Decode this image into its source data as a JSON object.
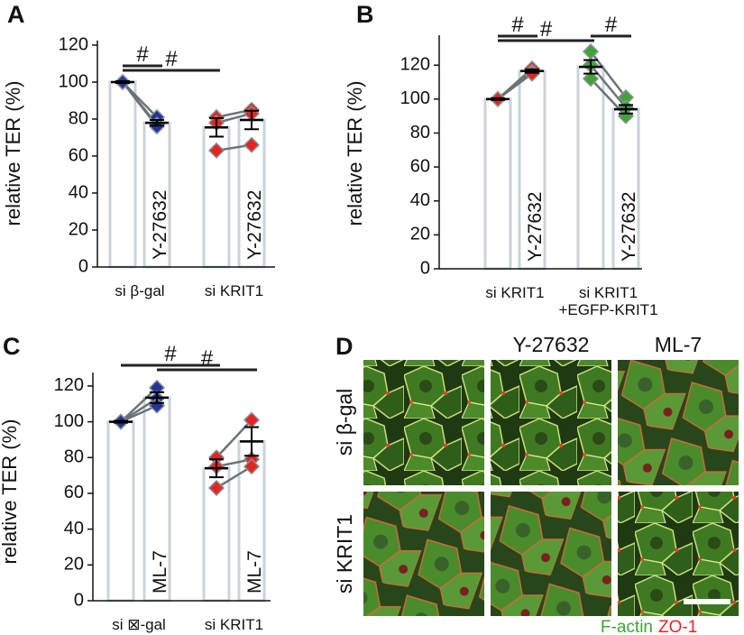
{
  "chart_data": [
    {
      "type": "bar",
      "panel": "A",
      "ylabel": "relative TER (%)",
      "ylim": [
        0,
        120
      ],
      "yticks": [
        0,
        20,
        40,
        60,
        80,
        100,
        120
      ],
      "group_labels": [
        [
          "si β-gal"
        ],
        [
          "si KRIT1"
        ]
      ],
      "categories": [
        null,
        "Y-27632",
        null,
        "Y-27632"
      ],
      "values": [
        100,
        78,
        75.5,
        79.5
      ],
      "errors": [
        0.5,
        1.5,
        5,
        5
      ],
      "points": [
        [
          100,
          100,
          100
        ],
        [
          81,
          77,
          76
        ],
        [
          81,
          78,
          63
        ],
        [
          85,
          83,
          66
        ]
      ],
      "point_colors": [
        "#23359b",
        "#23359b",
        "#e52421",
        "#e52421"
      ],
      "significance": [
        {
          "label": "#",
          "from": 0,
          "to": 1
        },
        {
          "label": "#",
          "from": 0,
          "to": 2
        }
      ]
    },
    {
      "type": "bar",
      "panel": "B",
      "ylabel": "relative TER (%)",
      "ylim": [
        0,
        135
      ],
      "yticks": [
        0,
        20,
        40,
        60,
        80,
        100,
        120
      ],
      "group_labels": [
        [
          "si KRIT1"
        ],
        [
          "si KRIT1",
          "+EGFP-KRIT1"
        ]
      ],
      "categories": [
        null,
        "Y-27632",
        null,
        "Y-27632"
      ],
      "values": [
        100,
        116.5,
        119,
        94
      ],
      "errors": [
        0.5,
        1,
        4,
        2.5
      ],
      "points": [
        [
          100,
          100,
          100
        ],
        [
          118,
          116,
          115
        ],
        [
          128,
          120,
          112
        ],
        [
          101,
          95,
          90
        ]
      ],
      "point_colors": [
        "#e52421",
        "#e52421",
        "#3ea535",
        "#3ea535"
      ],
      "significance": [
        {
          "label": "#",
          "from": 0,
          "to": 1
        },
        {
          "label": "#",
          "from": 0,
          "to": 2
        },
        {
          "label": "#",
          "from": 2,
          "to": 3
        }
      ]
    },
    {
      "type": "bar",
      "panel": "C",
      "ylabel": "relative TER (%)",
      "ylim": [
        0,
        125
      ],
      "yticks": [
        0,
        20,
        40,
        60,
        80,
        100,
        120
      ],
      "group_labels": [
        [
          "si ⊠-gal"
        ],
        [
          "si KRIT1"
        ]
      ],
      "categories": [
        null,
        "ML-7",
        null,
        "ML-7"
      ],
      "values": [
        100,
        113.5,
        74,
        89
      ],
      "errors": [
        0.5,
        3,
        5,
        8
      ],
      "points": [
        [
          100,
          100,
          100
        ],
        [
          119,
          113,
          109
        ],
        [
          80,
          75,
          63
        ],
        [
          101,
          79,
          75
        ]
      ],
      "point_colors": [
        "#23359b",
        "#23359b",
        "#e52421",
        "#e52421"
      ],
      "significance": [
        {
          "label": "#",
          "from": 0,
          "to": 2
        },
        {
          "label": "#",
          "from": 1,
          "to": 3
        }
      ]
    }
  ],
  "panel_d": {
    "panel": "D",
    "columns": [
      "Y-27632",
      "ML-7"
    ],
    "rows": [
      "si β-gal",
      "si KRIT1"
    ],
    "stain_green": "F-actin",
    "stain_red": "ZO-1"
  }
}
